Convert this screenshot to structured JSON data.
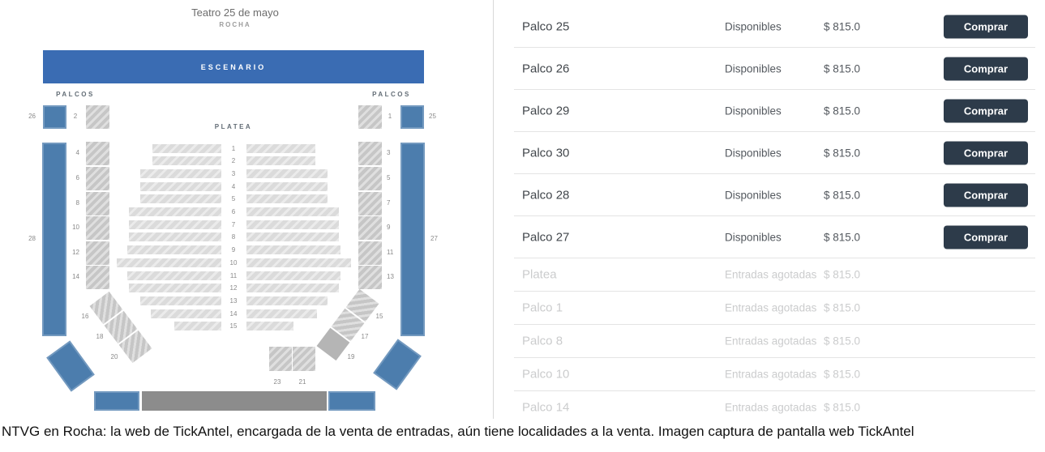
{
  "venue": {
    "title": "Teatro 25 de mayo",
    "subtitle": "ROCHA",
    "stage": "ESCENARIO",
    "palcos_label_left": "PALCOS",
    "palcos_label_right": "PALCOS",
    "platea_label": "PLATEA"
  },
  "seat_map": {
    "corner_boxes": [
      {
        "label": "26",
        "state": "available"
      },
      {
        "label": "2",
        "state": "sold"
      },
      {
        "label": "1",
        "state": "sold"
      },
      {
        "label": "25",
        "state": "available"
      }
    ],
    "side_bars": {
      "left": "28",
      "right": "27"
    },
    "left_column_labels": [
      "4",
      "6",
      "8",
      "10",
      "12",
      "14"
    ],
    "right_column_labels": [
      "3",
      "5",
      "7",
      "9",
      "11",
      "13"
    ],
    "platea_row_numbers": [
      "1",
      "2",
      "3",
      "4",
      "5",
      "6",
      "7",
      "8",
      "9",
      "10",
      "11",
      "12",
      "13",
      "14",
      "15"
    ],
    "diagonal_left_labels": [
      "16",
      "18",
      "20"
    ],
    "diagonal_right_labels": [
      "15",
      "17",
      "19"
    ],
    "bottom_square_labels": [
      "23",
      "21"
    ]
  },
  "tickets": {
    "buy_label": "Comprar",
    "rows": [
      {
        "section": "Palco 25",
        "status": "Disponibles",
        "price": "$ 815.0",
        "available": true
      },
      {
        "section": "Palco 26",
        "status": "Disponibles",
        "price": "$ 815.0",
        "available": true
      },
      {
        "section": "Palco 29",
        "status": "Disponibles",
        "price": "$ 815.0",
        "available": true
      },
      {
        "section": "Palco 30",
        "status": "Disponibles",
        "price": "$ 815.0",
        "available": true
      },
      {
        "section": "Palco 28",
        "status": "Disponibles",
        "price": "$ 815.0",
        "available": true
      },
      {
        "section": "Palco 27",
        "status": "Disponibles",
        "price": "$ 815.0",
        "available": true
      },
      {
        "section": "Platea",
        "status": "Entradas agotadas",
        "price": "$ 815.0",
        "available": false
      },
      {
        "section": "Palco 1",
        "status": "Entradas agotadas",
        "price": "$ 815.0",
        "available": false
      },
      {
        "section": "Palco 8",
        "status": "Entradas agotadas",
        "price": "$ 815.0",
        "available": false
      },
      {
        "section": "Palco 10",
        "status": "Entradas agotadas",
        "price": "$ 815.0",
        "available": false
      },
      {
        "section": "Palco 14",
        "status": "Entradas agotadas",
        "price": "$ 815.0",
        "available": false
      }
    ]
  },
  "caption": "NTVG en Rocha: la web de TickAntel, encargada de la venta de entradas, aún tiene localidades a la venta. Imagen captura de pantalla web TickAntel",
  "colors": {
    "stage_blue": "#3a6cb3",
    "palco_blue": "#4c7dad",
    "buy_button": "#2d3b4a",
    "sold_text": "#cbcccd",
    "stage_gray": "#8c8c8c"
  }
}
